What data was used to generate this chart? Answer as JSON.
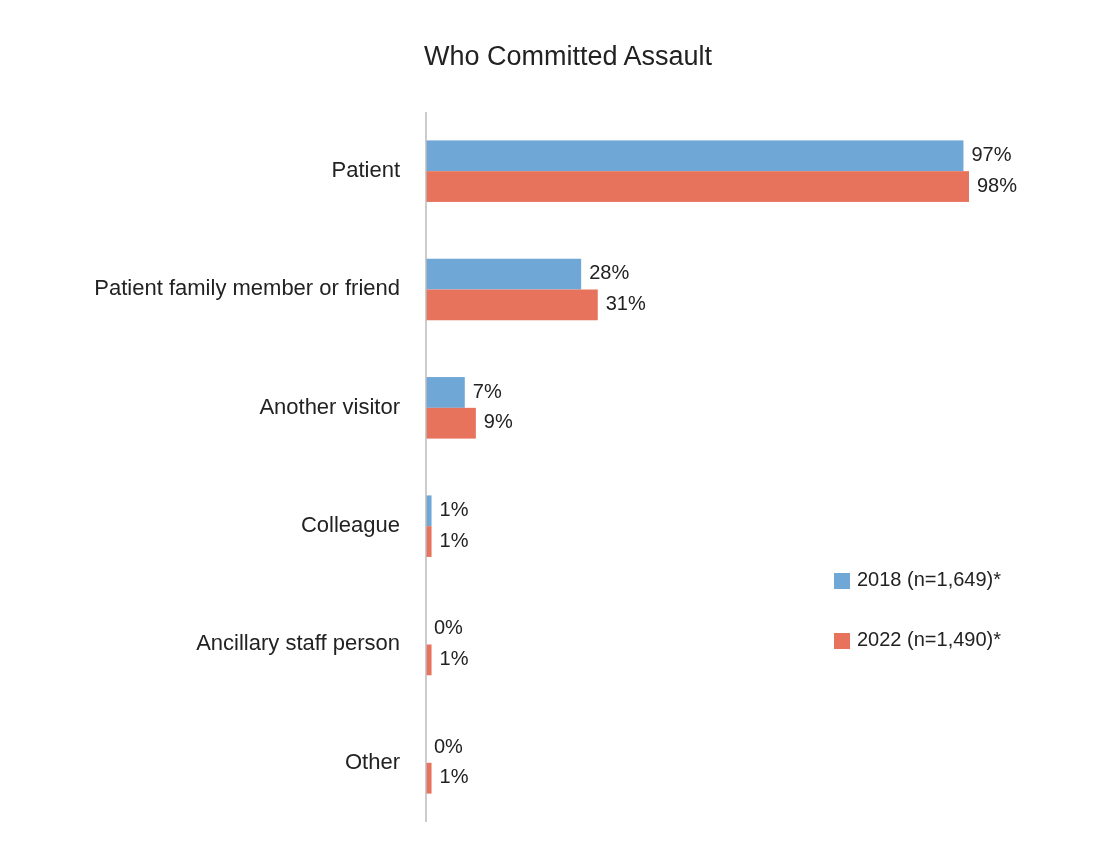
{
  "chart_data": {
    "type": "bar",
    "orientation": "horizontal",
    "title": "Who Committed Assault",
    "categories": [
      "Patient",
      "Patient family member or friend",
      "Another visitor",
      "Colleague",
      "Ancillary staff person",
      "Other"
    ],
    "series": [
      {
        "name": "2018 (n=1,649)*",
        "color": "#6fa8d6",
        "values": [
          97,
          28,
          7,
          1,
          0,
          0
        ],
        "value_labels": [
          "97%",
          "28%",
          "7%",
          "1%",
          "0%",
          "0%"
        ]
      },
      {
        "name": "2022 (n=1,490)*",
        "color": "#e8735c",
        "values": [
          98,
          31,
          9,
          1,
          1,
          1
        ],
        "value_labels": [
          "98%",
          "31%",
          "9%",
          "1%",
          "1%",
          "1%"
        ]
      }
    ],
    "legend": "right",
    "grid": false
  }
}
